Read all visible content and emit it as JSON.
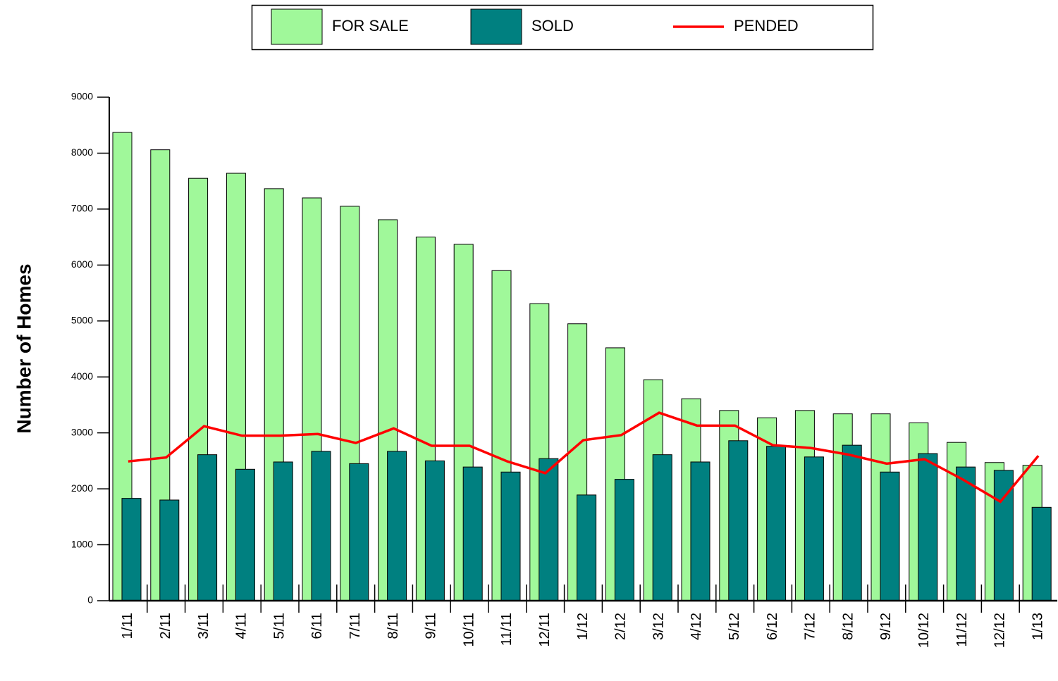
{
  "chart_data": {
    "type": "bar",
    "y_label": "Number of Homes",
    "categories": [
      "1/11",
      "2/11",
      "3/11",
      "4/11",
      "5/11",
      "6/11",
      "7/11",
      "8/11",
      "9/11",
      "10/11",
      "11/11",
      "12/11",
      "1/12",
      "2/12",
      "3/12",
      "4/12",
      "5/12",
      "6/12",
      "7/12",
      "8/12",
      "9/12",
      "10/12",
      "11/12",
      "12/12",
      "1/13"
    ],
    "series": [
      {
        "name": "FOR SALE",
        "type": "bar",
        "color": "#a0f89a",
        "values": [
          8370,
          8060,
          7550,
          7640,
          7365,
          7200,
          7050,
          6810,
          6500,
          6370,
          5900,
          5310,
          4950,
          4520,
          3950,
          3610,
          3400,
          3270,
          3400,
          3340,
          3340,
          3180,
          2830,
          2470,
          2420
        ]
      },
      {
        "name": "SOLD",
        "type": "bar",
        "color": "#008080",
        "values": [
          1830,
          1800,
          2610,
          2350,
          2480,
          2670,
          2450,
          2670,
          2500,
          2390,
          2300,
          2540,
          1890,
          2170,
          2610,
          2480,
          2860,
          2760,
          2570,
          2780,
          2300,
          2630,
          2390,
          2330,
          1670
        ]
      },
      {
        "name": "PENDED",
        "type": "line",
        "color": "#ff0000",
        "values": [
          2490,
          2560,
          3120,
          2950,
          2950,
          2980,
          2820,
          3080,
          2770,
          2770,
          2490,
          2280,
          2870,
          2960,
          3360,
          3130,
          3130,
          2780,
          2730,
          2610,
          2450,
          2530,
          2170,
          1770,
          2590
        ]
      }
    ],
    "ylim": [
      0,
      9000
    ],
    "yticks": [
      0,
      1000,
      2000,
      3000,
      4000,
      5000,
      6000,
      7000,
      8000,
      9000
    ],
    "legend": "top"
  }
}
